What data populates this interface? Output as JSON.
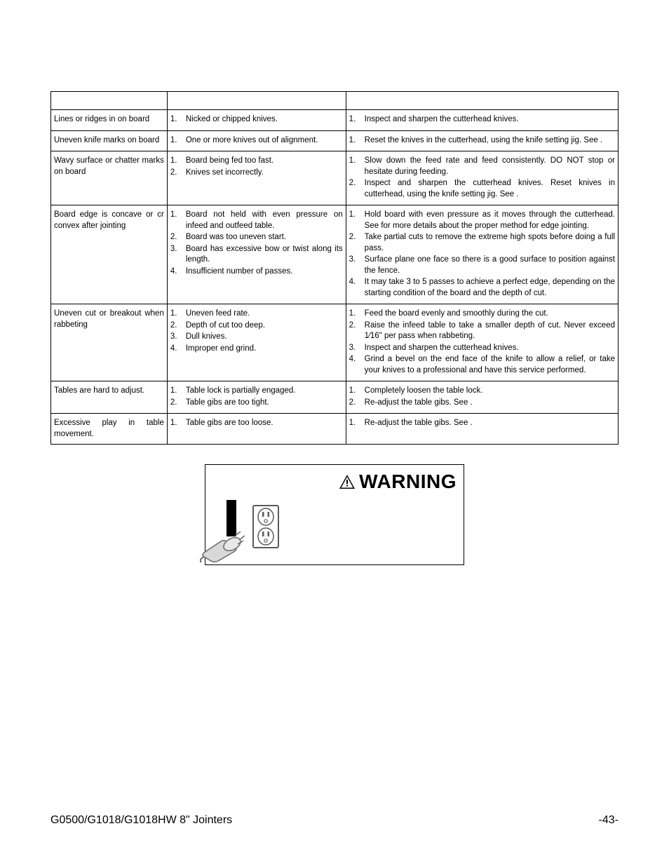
{
  "table": {
    "headers": [
      "",
      "",
      ""
    ],
    "rows": [
      {
        "symptom": "Lines or ridges in on board",
        "causes": [
          "Nicked or chipped knives."
        ],
        "remedies": [
          "Inspect and sharpen the cutterhead knives."
        ]
      },
      {
        "symptom": "Uneven knife marks on board",
        "causes": [
          "One or more knives out of alignment."
        ],
        "remedies": [
          "Reset the knives in the cutterhead, using the knife setting jig. See            ."
        ]
      },
      {
        "symptom": "Wavy surface or chatter marks on board",
        "causes": [
          "Board being fed too fast.",
          "Knives set incorrectly."
        ],
        "remedies": [
          "Slow down the feed rate and feed consistently. DO NOT stop or hesitate during feeding.",
          "Inspect and sharpen the cutterhead knives. Reset knives in cutterhead, using the knife setting jig. See                     ."
        ]
      },
      {
        "symptom": "Board edge is concave or cr convex after jointing",
        "causes": [
          "Board not held with even pressure on infeed and outfeed table.",
          "Board was too uneven start.",
          "Board has excessive bow or twist along its length.",
          "Insufficient number of passes."
        ],
        "remedies": [
          "Hold board with even pressure as it moves through the cutterhead. See                 for more details about the proper method for edge jointing.",
          "Take partial cuts to remove the extreme high spots before doing a full pass.",
          "Surface plane one face so there is a good surface to position against the fence.",
          "It may take 3 to 5 passes to achieve a perfect edge, depending on the starting condition of the board and the depth of cut."
        ]
      },
      {
        "symptom": "Uneven cut or breakout when rabbeting",
        "causes": [
          "Uneven feed rate.",
          "Depth of cut too deep.",
          "Dull knives.",
          "Improper end grind."
        ],
        "remedies": [
          "Feed the board evenly and smoothly during the cut.",
          "Raise the infeed table to take a smaller depth of cut. Never exceed 1⁄16\" per pass when rabbeting.",
          "Inspect and sharpen the cutterhead knives.",
          "Grind a bevel on the end face of the knife to allow a relief, or take your knives to a professional and have this service performed."
        ]
      },
      {
        "symptom": "Tables are hard to adjust.",
        "causes": [
          "Table lock is partially engaged.",
          "Table gibs are too tight."
        ],
        "remedies": [
          "Completely loosen the table lock.",
          "Re-adjust the table gibs. See                     ."
        ]
      },
      {
        "symptom": "Excessive play in table movement.",
        "causes": [
          "Table gibs are too loose."
        ],
        "remedies": [
          "Re-adjust the table gibs. See                     ."
        ]
      }
    ]
  },
  "warning": {
    "label": "WARNING"
  },
  "footer": {
    "left": "G0500/G1018/G1018HW 8\" Jointers",
    "right": "-43-"
  }
}
